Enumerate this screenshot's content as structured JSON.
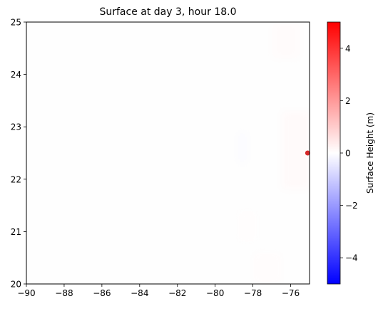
{
  "chart_data": {
    "type": "heatmap",
    "title": "Surface at day   3, hour 18.0",
    "xlim": [
      -90,
      -75
    ],
    "ylim": [
      20,
      25
    ],
    "x_ticks": [
      -90,
      -88,
      -86,
      -84,
      -82,
      -80,
      -78,
      -76
    ],
    "y_ticks": [
      20,
      21,
      22,
      23,
      24,
      25
    ],
    "x_tick_labels": [
      "−90",
      "−88",
      "−86",
      "−84",
      "−82",
      "−80",
      "−78",
      "−76"
    ],
    "y_tick_labels": [
      "20",
      "21",
      "22",
      "23",
      "24",
      "25"
    ],
    "colorbar": {
      "label": "Surface Height (m)",
      "vmin": -5,
      "vmax": 5,
      "colormap": "bwr",
      "colors": {
        "low": "#0000ff",
        "mid": "#ffffff",
        "high": "#ff0000"
      },
      "ticks": [
        -4,
        -2,
        0,
        2,
        4
      ],
      "tick_labels": [
        "−4",
        "−2",
        "0",
        "2",
        "4"
      ]
    },
    "field_patches": [
      {
        "x": [
          -75.8,
          -75
        ],
        "y": [
          22,
          23.1
        ],
        "value": 0.25
      },
      {
        "x": [
          -76.5,
          -75
        ],
        "y": [
          21.8,
          23.3
        ],
        "value": 0.1
      },
      {
        "x": [
          -77,
          -75.5
        ],
        "y": [
          24.3,
          25
        ],
        "value": 0.08
      },
      {
        "x": [
          -78.8,
          -78.3
        ],
        "y": [
          22.3,
          22.9
        ],
        "value": -0.08
      },
      {
        "x": [
          -78,
          -76.5
        ],
        "y": [
          20,
          20.6
        ],
        "value": 0.05
      },
      {
        "x": [
          -78.8,
          -77.8
        ],
        "y": [
          20.8,
          21.4
        ],
        "value": 0.04
      }
    ],
    "marker": {
      "x": -75.1,
      "y": 22.5,
      "color": "#d62728"
    }
  }
}
